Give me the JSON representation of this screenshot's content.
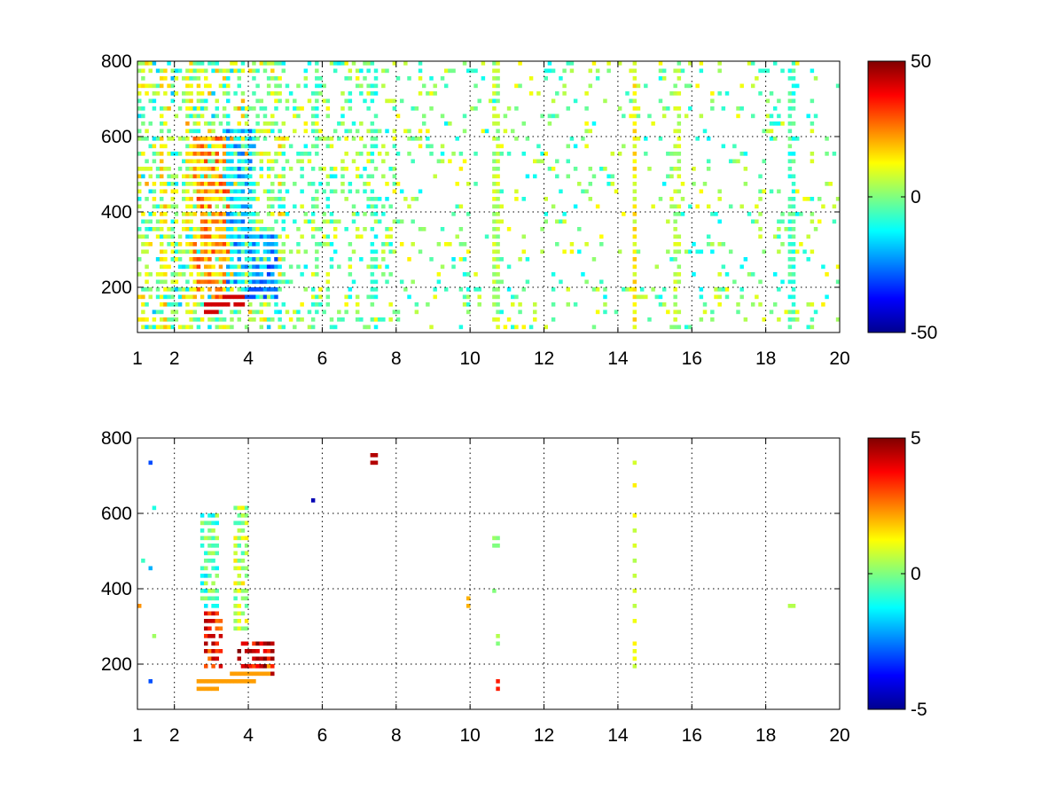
{
  "chart_data": [
    {
      "type": "heatmap",
      "title": "",
      "xlabel": "",
      "ylabel": "",
      "xlim": [
        1,
        20
      ],
      "ylim": [
        80,
        800
      ],
      "xticks": [
        1,
        2,
        4,
        6,
        8,
        10,
        12,
        14,
        16,
        18,
        20
      ],
      "xtick_labels": [
        "1",
        "2",
        "4",
        "6",
        "8",
        "10",
        "12",
        "14",
        "16",
        "18",
        "20"
      ],
      "yticks": [
        200,
        400,
        600,
        800
      ],
      "ytick_labels": [
        "200",
        "400",
        "600",
        "800"
      ],
      "grid": true,
      "colormap": "jet",
      "clim": [
        -50,
        50
      ],
      "colorbar_ticks": [
        -50,
        0,
        50
      ],
      "colorbar_labels": [
        "-50",
        "0",
        "50"
      ],
      "background": "#ffffff",
      "features": [
        {
          "kind": "column",
          "x": 10.7,
          "value": 5,
          "density": 0.95
        },
        {
          "kind": "column",
          "x": 14.45,
          "value": 12,
          "density": 0.95
        },
        {
          "kind": "column",
          "x": 18.7,
          "value": -6,
          "density": 0.9
        },
        {
          "kind": "column",
          "x": 15.6,
          "value": 4,
          "density": 0.55
        },
        {
          "kind": "column",
          "x": 7.4,
          "value": -8,
          "density": 0.55
        },
        {
          "kind": "column",
          "x": 5.8,
          "value": -5,
          "density": 0.45
        },
        {
          "kind": "column",
          "x": 1.7,
          "value": 14,
          "density": 0.6
        },
        {
          "kind": "column",
          "x": 2.4,
          "value": 12,
          "density": 0.6
        },
        {
          "kind": "blob",
          "x_range": [
            2.5,
            3.6
          ],
          "y_range": [
            170,
            600
          ],
          "value": 22
        },
        {
          "kind": "blob",
          "x_range": [
            3.4,
            4.2
          ],
          "y_range": [
            180,
            620
          ],
          "value": -18
        },
        {
          "kind": "blob",
          "x_range": [
            4.1,
            4.8
          ],
          "y_range": [
            170,
            340
          ],
          "value": -22
        },
        {
          "kind": "band",
          "x_range": [
            2.8,
            3.9
          ],
          "y_from": 140,
          "y_to": 165,
          "value": 42
        },
        {
          "kind": "band",
          "x_range": [
            3.9,
            4.4
          ],
          "y_from": 165,
          "y_to": 200,
          "value": -30
        }
      ]
    },
    {
      "type": "heatmap",
      "title": "",
      "xlabel": "",
      "ylabel": "",
      "xlim": [
        1,
        20
      ],
      "ylim": [
        80,
        800
      ],
      "xticks": [
        1,
        2,
        4,
        6,
        8,
        10,
        12,
        14,
        16,
        18,
        20
      ],
      "xtick_labels": [
        "1",
        "2",
        "4",
        "6",
        "8",
        "10",
        "12",
        "14",
        "16",
        "18",
        "20"
      ],
      "yticks": [
        200,
        400,
        600,
        800
      ],
      "ytick_labels": [
        "200",
        "400",
        "600",
        "800"
      ],
      "grid": true,
      "colormap": "jet",
      "clim": [
        -5,
        5
      ],
      "colorbar_ticks": [
        -5,
        0,
        5
      ],
      "colorbar_labels": [
        "-5",
        "0",
        "5"
      ],
      "background": "#ffffff",
      "features": [
        {
          "kind": "blob",
          "x_range": [
            2.7,
            3.2
          ],
          "y_range": [
            340,
            600
          ],
          "value": -0.5
        },
        {
          "kind": "blob",
          "x_range": [
            3.6,
            4.0
          ],
          "y_range": [
            280,
            620
          ],
          "value": 0.5
        },
        {
          "kind": "blob",
          "x_range": [
            2.8,
            3.3
          ],
          "y_range": [
            190,
            330
          ],
          "value": 3.5
        },
        {
          "kind": "blob",
          "x_range": [
            3.7,
            4.7
          ],
          "y_range": [
            170,
            260
          ],
          "value": 4.2
        },
        {
          "kind": "band",
          "x_range": [
            2.6,
            4.6
          ],
          "y_from": 135,
          "y_to": 175,
          "value": 2.2
        },
        {
          "kind": "column",
          "x": 14.45,
          "value": 0.8,
          "y_range": [
            100,
            740
          ],
          "density": 0.45
        },
        {
          "kind": "column",
          "x": 10.7,
          "value": 0.2,
          "y_range": [
            130,
            580
          ],
          "density": 0.12
        },
        {
          "kind": "point",
          "x": 7.4,
          "y": 740,
          "value": 4.5
        },
        {
          "kind": "point",
          "x": 5.75,
          "y": 630,
          "value": -4.5
        },
        {
          "kind": "point",
          "x": 10.75,
          "y": 140,
          "value": 3.5
        },
        {
          "kind": "point",
          "x": 18.7,
          "y": 350,
          "value": 0.5
        },
        {
          "kind": "point",
          "x": 9.95,
          "y": 360,
          "value": 2.0
        }
      ]
    }
  ]
}
